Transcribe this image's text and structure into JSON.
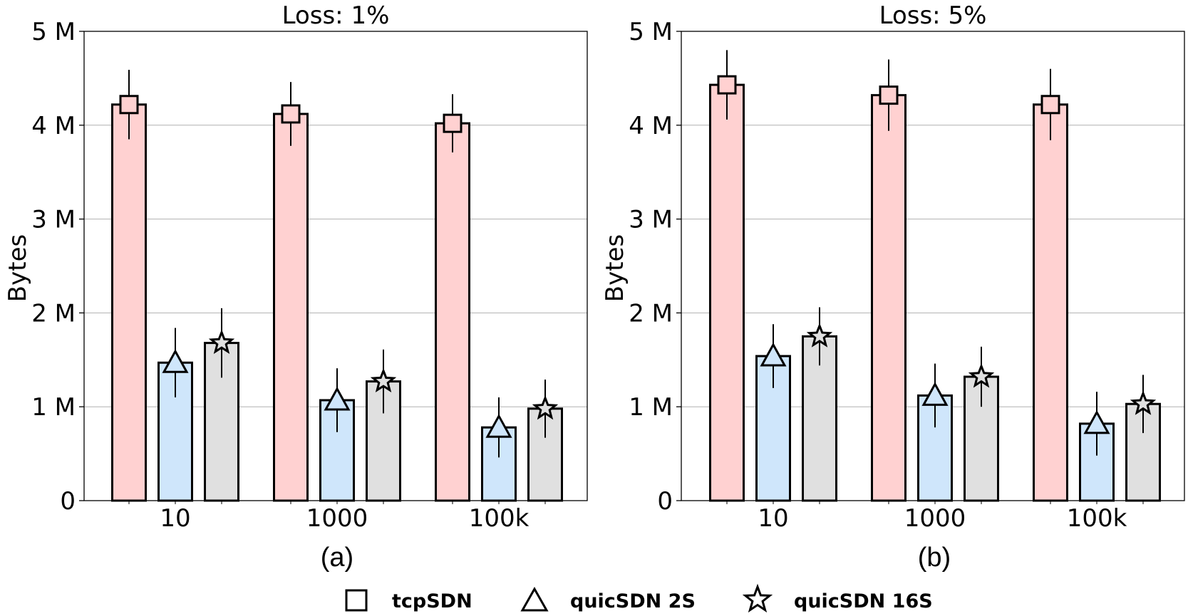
{
  "chart_data": [
    {
      "type": "bar",
      "title": "Loss: 1%",
      "sublabel": "(a)",
      "ylabel": "Bytes",
      "ylim": [
        0,
        5000000
      ],
      "yticks": [
        0,
        1000000,
        2000000,
        3000000,
        4000000,
        5000000
      ],
      "ytick_labels": [
        "0",
        "1 M",
        "2 M",
        "3 M",
        "4 M",
        "5 M"
      ],
      "grid": true,
      "categories": [
        "10",
        "1000",
        "100k"
      ],
      "series": [
        {
          "name": "tcpSDN",
          "values": [
            4220000,
            4120000,
            4020000
          ],
          "errors": [
            370000,
            340000,
            310000
          ]
        },
        {
          "name": "quicSDN 2S",
          "values": [
            1470000,
            1070000,
            780000
          ],
          "errors": [
            370000,
            340000,
            320000
          ]
        },
        {
          "name": "quicSDN 16S",
          "values": [
            1680000,
            1270000,
            980000
          ],
          "errors": [
            370000,
            340000,
            310000
          ]
        }
      ]
    },
    {
      "type": "bar",
      "title": "Loss: 5%",
      "sublabel": "(b)",
      "ylabel": "Bytes",
      "ylim": [
        0,
        5000000
      ],
      "yticks": [
        0,
        1000000,
        2000000,
        3000000,
        4000000,
        5000000
      ],
      "ytick_labels": [
        "0",
        "1 M",
        "2 M",
        "3 M",
        "4 M",
        "5 M"
      ],
      "grid": true,
      "categories": [
        "10",
        "1000",
        "100k"
      ],
      "series": [
        {
          "name": "tcpSDN",
          "values": [
            4430000,
            4320000,
            4220000
          ],
          "errors": [
            370000,
            380000,
            380000
          ]
        },
        {
          "name": "quicSDN 2S",
          "values": [
            1540000,
            1120000,
            820000
          ],
          "errors": [
            340000,
            340000,
            340000
          ]
        },
        {
          "name": "quicSDN 16S",
          "values": [
            1750000,
            1320000,
            1030000
          ],
          "errors": [
            310000,
            320000,
            310000
          ]
        }
      ]
    }
  ],
  "legend": {
    "position": "bottom-center",
    "items": [
      {
        "label": "tcpSDN",
        "marker": "square-icon"
      },
      {
        "label": "quicSDN 2S",
        "marker": "triangle-icon"
      },
      {
        "label": "quicSDN 16S",
        "marker": "star-icon"
      }
    ]
  },
  "colors": {
    "tcpSDN": "#ffd1d1",
    "quicSDN 2S": "#cfe6fb",
    "quicSDN 16S": "#e0e0e0"
  }
}
